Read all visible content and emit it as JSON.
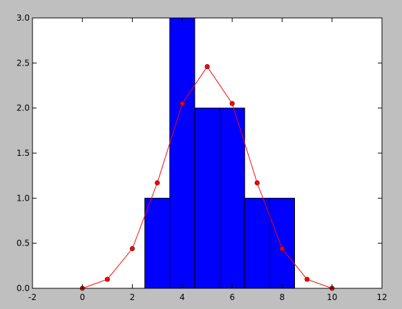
{
  "chart_data": {
    "type": "bar",
    "title": "",
    "xlabel": "",
    "ylabel": "",
    "xlim": [
      -2,
      12
    ],
    "ylim": [
      0,
      3.0
    ],
    "grid": false,
    "legend": "none",
    "colors": {
      "figure_background": "#bfbfbf",
      "axes_background": "#ffffff",
      "bar_fill": "#0000ff",
      "bar_edge": "#000000",
      "line": "#ff0000",
      "marker_fill": "#ff0000",
      "marker_edge": "#800000"
    },
    "x_ticks": [
      "-2",
      "0",
      "2",
      "4",
      "6",
      "8",
      "10",
      "12"
    ],
    "y_ticks": [
      "0.0",
      "0.5",
      "1.0",
      "1.5",
      "2.0",
      "2.5",
      "3.0"
    ],
    "bars": {
      "bin_width": 1,
      "centers": [
        3,
        4,
        5,
        6,
        7,
        8
      ],
      "values": [
        1,
        3,
        2,
        2,
        1,
        1
      ]
    },
    "series": [
      {
        "type": "line",
        "marker": "circle",
        "x": [
          0,
          1,
          2,
          3,
          4,
          5,
          6,
          7,
          8,
          9,
          10
        ],
        "y": [
          0.0,
          0.1,
          0.44,
          1.17,
          2.05,
          2.46,
          2.05,
          1.17,
          0.44,
          0.1,
          0.0
        ]
      }
    ]
  }
}
